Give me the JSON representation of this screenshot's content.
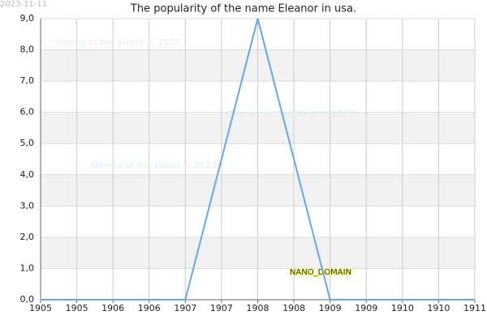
{
  "chart_data": {
    "type": "line",
    "title": "The popularity of the name Eleanor in usa.",
    "timestamp": "2023-11-11",
    "watermarks": [
      "Names of the World © 2023",
      "Names of the World © 2023",
      "Names of the World © 2023"
    ],
    "badge": "NANO_DOMAIN",
    "x": [
      1905,
      1906,
      1907,
      1908,
      1909,
      1910,
      1911
    ],
    "series": [
      {
        "name": "Eleanor",
        "color": "#64a8ea",
        "values": [
          0,
          0,
          0,
          9,
          0,
          0,
          0
        ]
      }
    ],
    "xlim": [
      1905,
      1911
    ],
    "xticks": [
      {
        "value": 1905,
        "label": "1905"
      },
      {
        "value": 1905.5,
        "label": "1905"
      },
      {
        "value": 1906,
        "label": "1906"
      },
      {
        "value": 1906.5,
        "label": "1906"
      },
      {
        "value": 1907,
        "label": "1907"
      },
      {
        "value": 1907.5,
        "label": "1907"
      },
      {
        "value": 1908,
        "label": "1908"
      },
      {
        "value": 1908.5,
        "label": "1908"
      },
      {
        "value": 1909,
        "label": "1909"
      },
      {
        "value": 1909.5,
        "label": "1909"
      },
      {
        "value": 1910,
        "label": "1910"
      },
      {
        "value": 1910.5,
        "label": "1910"
      },
      {
        "value": 1911,
        "label": "1911"
      }
    ],
    "ylim": [
      0,
      9
    ],
    "yticks": [
      {
        "value": 0,
        "label": "0,0"
      },
      {
        "value": 1,
        "label": "1,0"
      },
      {
        "value": 2,
        "label": "2,0"
      },
      {
        "value": 3,
        "label": "3,0"
      },
      {
        "value": 4,
        "label": "4,0"
      },
      {
        "value": 5,
        "label": "5,0"
      },
      {
        "value": 6,
        "label": "6,0"
      },
      {
        "value": 7,
        "label": "7,0"
      },
      {
        "value": 8,
        "label": "8,0"
      },
      {
        "value": 9,
        "label": "9,0"
      }
    ],
    "grid": true
  }
}
